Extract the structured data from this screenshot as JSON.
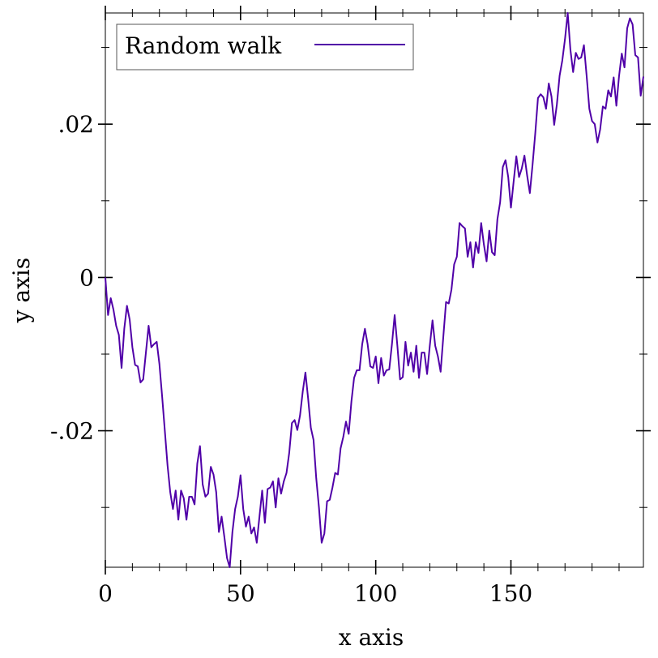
{
  "chart_data": {
    "type": "line",
    "title": "",
    "xlabel": "x axis",
    "ylabel": "y axis",
    "xlim": [
      0,
      199
    ],
    "ylim": [
      -0.0378,
      0.0345
    ],
    "x_ticks": [
      0,
      50,
      100,
      150
    ],
    "x_tick_labels": [
      "0",
      "50",
      "100",
      "150"
    ],
    "x_minor_step": 10,
    "y_ticks": [
      -0.02,
      0,
      0.02
    ],
    "y_tick_labels": [
      "-.02",
      "0",
      ".02"
    ],
    "y_minor_step": 0.01,
    "grid": false,
    "legend": "top-left",
    "series": [
      {
        "name": "Random walk",
        "color": "#5000A8",
        "x_start": 0,
        "x_step": 1,
        "values": [
          0.0,
          -0.0049,
          -0.0027,
          -0.0042,
          -0.0063,
          -0.0075,
          -0.0118,
          -0.0067,
          -0.0037,
          -0.0055,
          -0.0091,
          -0.0114,
          -0.0116,
          -0.0137,
          -0.0133,
          -0.0098,
          -0.0063,
          -0.0091,
          -0.0087,
          -0.0084,
          -0.0113,
          -0.0155,
          -0.02,
          -0.0245,
          -0.028,
          -0.0302,
          -0.0278,
          -0.0316,
          -0.0278,
          -0.0288,
          -0.0316,
          -0.0286,
          -0.0286,
          -0.0296,
          -0.0243,
          -0.022,
          -0.027,
          -0.0286,
          -0.0282,
          -0.0247,
          -0.0257,
          -0.028,
          -0.0332,
          -0.0312,
          -0.0338,
          -0.0366,
          -0.0378,
          -0.0332,
          -0.0302,
          -0.0286,
          -0.0258,
          -0.0302,
          -0.0325,
          -0.0312,
          -0.0334,
          -0.0326,
          -0.0346,
          -0.0312,
          -0.0278,
          -0.032,
          -0.0276,
          -0.0274,
          -0.0266,
          -0.03,
          -0.0262,
          -0.0282,
          -0.0266,
          -0.0255,
          -0.0229,
          -0.019,
          -0.0186,
          -0.0199,
          -0.018,
          -0.0149,
          -0.0124,
          -0.0158,
          -0.0196,
          -0.0212,
          -0.0262,
          -0.03,
          -0.0346,
          -0.0334,
          -0.0292,
          -0.029,
          -0.0274,
          -0.0255,
          -0.0257,
          -0.0223,
          -0.0208,
          -0.0188,
          -0.0204,
          -0.0162,
          -0.0131,
          -0.0121,
          -0.0121,
          -0.0087,
          -0.0067,
          -0.0087,
          -0.0116,
          -0.0118,
          -0.0103,
          -0.0138,
          -0.0105,
          -0.0128,
          -0.0121,
          -0.012,
          -0.0087,
          -0.0049,
          -0.0089,
          -0.0133,
          -0.013,
          -0.0084,
          -0.0115,
          -0.0098,
          -0.0123,
          -0.0089,
          -0.0131,
          -0.0098,
          -0.0098,
          -0.0126,
          -0.0089,
          -0.0056,
          -0.0089,
          -0.0103,
          -0.0123,
          -0.0077,
          -0.0032,
          -0.0034,
          -0.0016,
          0.0017,
          0.0027,
          0.0071,
          0.0067,
          0.0064,
          0.0027,
          0.0046,
          0.0013,
          0.0046,
          0.0032,
          0.0071,
          0.0043,
          0.0021,
          0.0061,
          0.0033,
          0.0029,
          0.0076,
          0.0098,
          0.0144,
          0.0153,
          0.0131,
          0.0091,
          0.0125,
          0.0158,
          0.0131,
          0.0142,
          0.0159,
          0.0133,
          0.011,
          0.0147,
          0.0188,
          0.0234,
          0.0239,
          0.0235,
          0.022,
          0.0253,
          0.0236,
          0.0199,
          0.0226,
          0.0263,
          0.0283,
          0.0311,
          0.0345,
          0.0297,
          0.0268,
          0.0293,
          0.0285,
          0.0287,
          0.0303,
          0.0263,
          0.022,
          0.0204,
          0.02,
          0.0176,
          0.0193,
          0.0223,
          0.022,
          0.0244,
          0.0236,
          0.0261,
          0.0224,
          0.0263,
          0.0292,
          0.0274,
          0.0325,
          0.0338,
          0.033,
          0.029,
          0.0287,
          0.0237,
          0.0262
        ]
      }
    ]
  }
}
